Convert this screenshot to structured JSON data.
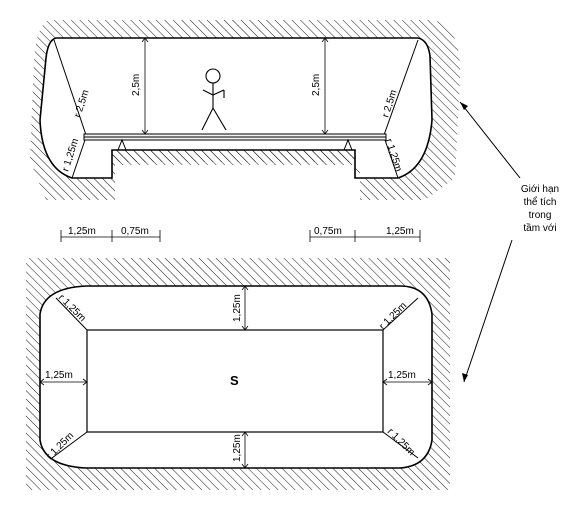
{
  "top_view": {
    "labels": {
      "r_left_upper": "r 2,5m",
      "r_left_lower": "r 1,25m",
      "height_left": "2,5m",
      "height_right": "2,5m",
      "r_right_upper": "r 2,5m",
      "r_right_lower": "r 1,25m"
    }
  },
  "dimension_row": {
    "left_outer": "1,25m",
    "left_inner": "0,75m",
    "right_inner": "0,75m",
    "right_outer": "1,25m"
  },
  "bottom_view": {
    "area_label": "S",
    "top": "1,25m",
    "bottom": "1,25m",
    "left": "1,25m",
    "right": "1,25m",
    "corner_tl": "r 1,25m",
    "corner_tr": "r 1,25m",
    "corner_bl": "r 1,25m",
    "corner_br": "r 1,25m"
  },
  "annotation": {
    "lines": [
      "Giới hạn",
      "thể tích",
      "trong",
      "tầm với"
    ]
  }
}
